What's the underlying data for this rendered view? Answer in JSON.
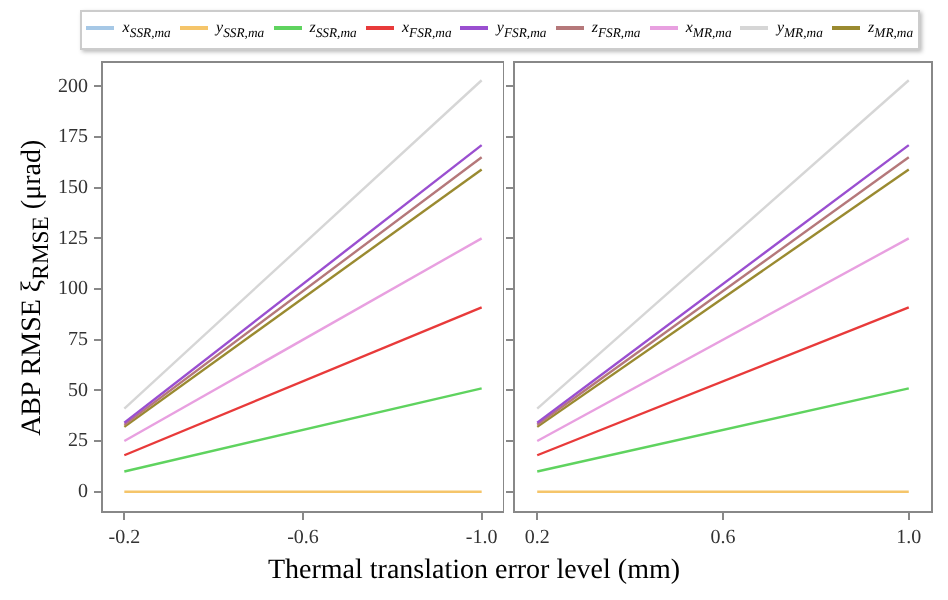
{
  "chart_data": [
    {
      "type": "line",
      "ylabel": "ABP RMSE ξ$_{RMSE}$ (μrad)",
      "xlabel": "Thermal translation error level (mm)",
      "x": [
        -0.2,
        -1.0
      ],
      "xlim": [
        -0.15,
        -1.05
      ],
      "xticks": [
        -0.2,
        -0.6,
        {
          "value": -1,
          "label": "-1.0"
        }
      ],
      "ylim": [
        -10,
        212
      ],
      "yticks": [
        0,
        25,
        50,
        75,
        100,
        125,
        150,
        175,
        200
      ],
      "grid": false,
      "legend": "top",
      "marker": "none",
      "line_style": "solid",
      "series": [
        {
          "name": "x$_{SSR,ma}$",
          "color": "#a6c8e6",
          "values": [
            null,
            null
          ]
        },
        {
          "name": "y$_{SSR,ma}$",
          "color": "#f5c56a",
          "values": [
            0,
            0
          ]
        },
        {
          "name": "z$_{SSR,ma}$",
          "color": "#5fd35f",
          "values": [
            10,
            51
          ]
        },
        {
          "name": "x$_{FSR,ma}$",
          "color": "#e83a3a",
          "values": [
            18,
            91
          ]
        },
        {
          "name": "y$_{FSR,ma}$",
          "color": "#9a4fd0",
          "values": [
            34,
            171
          ]
        },
        {
          "name": "z$_{FSR,ma}$",
          "color": "#b5787a",
          "values": [
            33,
            165
          ]
        },
        {
          "name": "x$_{MR,ma}$",
          "color": "#e8a0e0",
          "values": [
            25,
            125
          ]
        },
        {
          "name": "y$_{MR,ma}$",
          "color": "#d6d6d6",
          "values": [
            41,
            203
          ]
        },
        {
          "name": "z$_{MR,ma}$",
          "color": "#9a8a30",
          "values": [
            32,
            159
          ]
        }
      ]
    },
    {
      "type": "line",
      "x": [
        0.2,
        1.0
      ],
      "xlim": [
        0.15,
        1.05
      ],
      "xticks": [
        0.2,
        0.6,
        {
          "value": 1,
          "label": "1.0"
        }
      ],
      "ylim": [
        -10,
        212
      ],
      "yticks": [
        0,
        25,
        50,
        75,
        100,
        125,
        150,
        175,
        200
      ],
      "grid": false,
      "tick_labels": "x",
      "marker": "none",
      "line_style": "solid",
      "series": [
        {
          "color": "#a6c8e6",
          "values": [
            null,
            null
          ]
        },
        {
          "color": "#f5c56a",
          "values": [
            0,
            0
          ]
        },
        {
          "color": "#5fd35f",
          "values": [
            10,
            51
          ]
        },
        {
          "color": "#e83a3a",
          "values": [
            18,
            91
          ]
        },
        {
          "color": "#9a4fd0",
          "values": [
            34,
            171
          ]
        },
        {
          "color": "#b5787a",
          "values": [
            33,
            165
          ]
        },
        {
          "color": "#e8a0e0",
          "values": [
            25,
            125
          ]
        },
        {
          "color": "#d6d6d6",
          "values": [
            41,
            203
          ]
        },
        {
          "color": "#9a8a30",
          "values": [
            32,
            159
          ]
        }
      ]
    }
  ]
}
